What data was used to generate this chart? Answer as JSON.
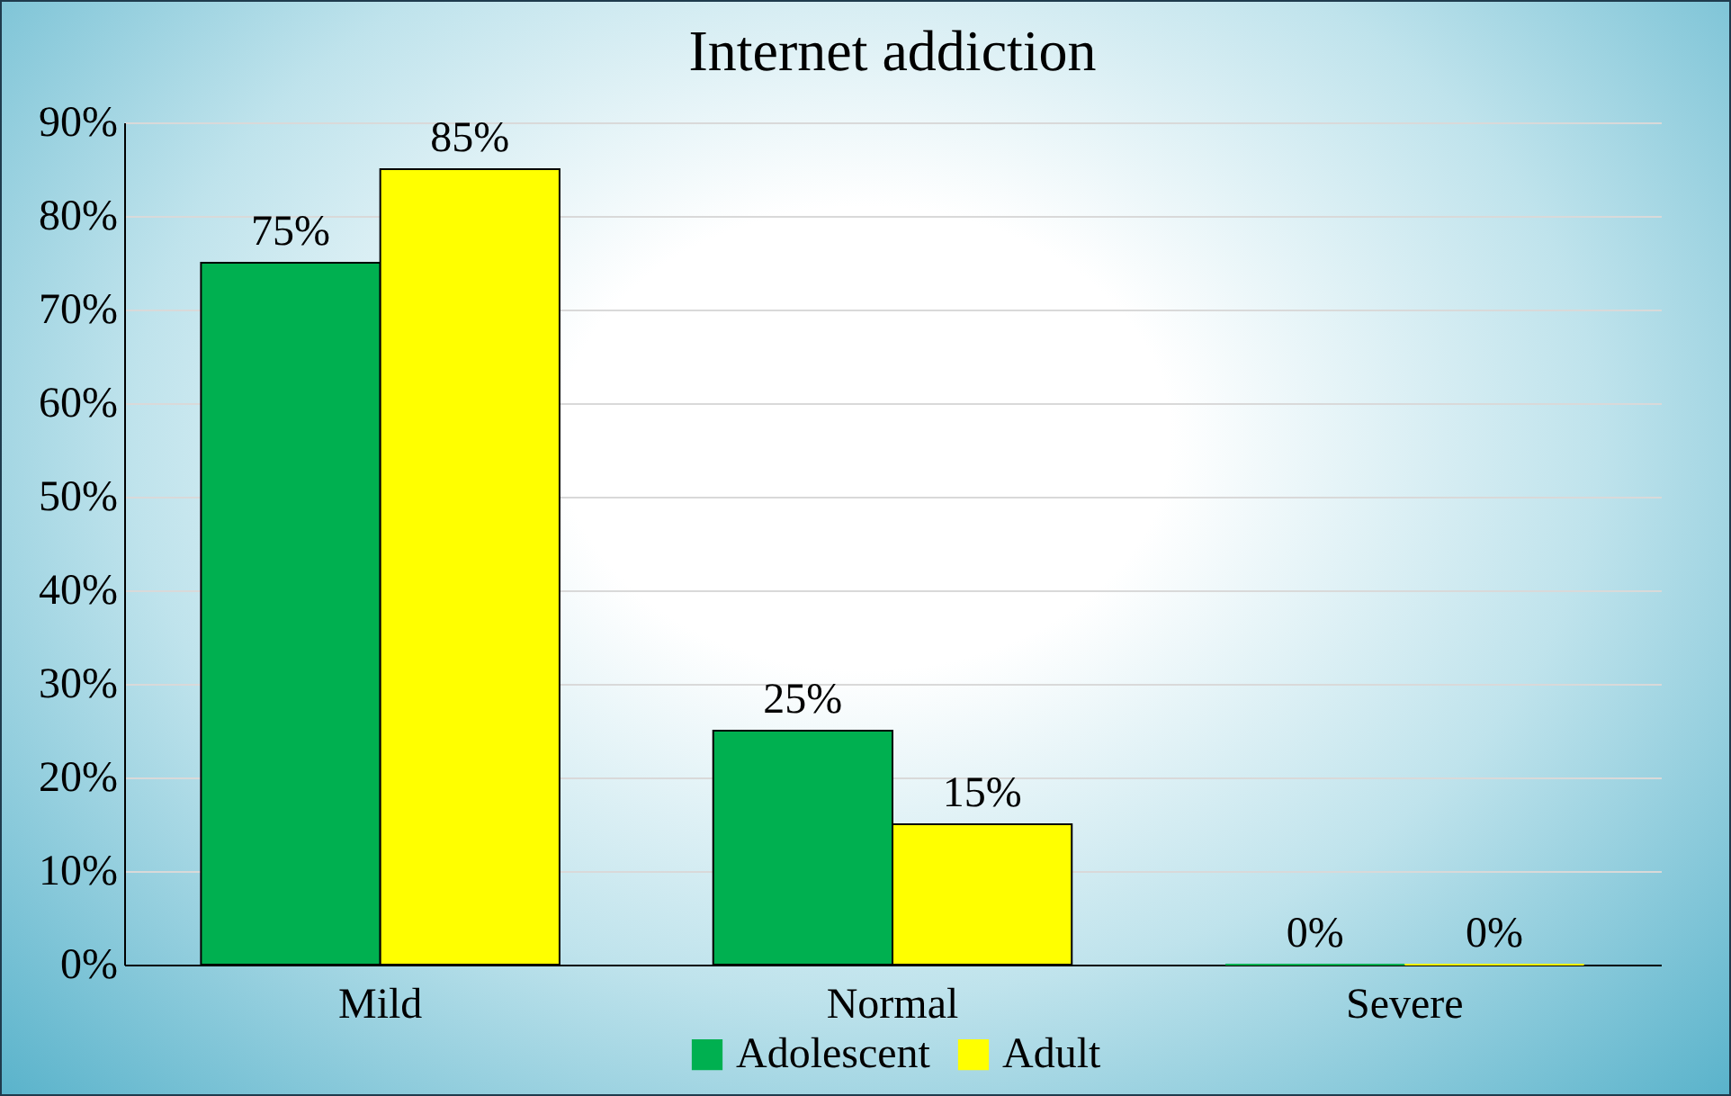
{
  "chart_data": {
    "type": "bar",
    "title": "Internet addiction",
    "categories": [
      "Mild",
      "Normal",
      "Severe"
    ],
    "series": [
      {
        "name": "Adolescent",
        "color": "#00b050",
        "values": [
          75,
          25,
          0
        ],
        "value_labels": [
          "75%",
          "25%",
          "0%"
        ]
      },
      {
        "name": "Adult",
        "color": "#ffff00",
        "values": [
          85,
          15,
          0
        ],
        "value_labels": [
          "85%",
          "15%",
          "0%"
        ]
      }
    ],
    "ylim": [
      0,
      90
    ],
    "yticks": [
      {
        "value": 0,
        "label": "0%"
      },
      {
        "value": 10,
        "label": "10%"
      },
      {
        "value": 20,
        "label": "20%"
      },
      {
        "value": 30,
        "label": "30%"
      },
      {
        "value": 40,
        "label": "40%"
      },
      {
        "value": 50,
        "label": "50%"
      },
      {
        "value": 60,
        "label": "60%"
      },
      {
        "value": 70,
        "label": "70%"
      },
      {
        "value": 80,
        "label": "80%"
      },
      {
        "value": 90,
        "label": "90%"
      }
    ],
    "grid": "y",
    "legend": "bottom"
  }
}
